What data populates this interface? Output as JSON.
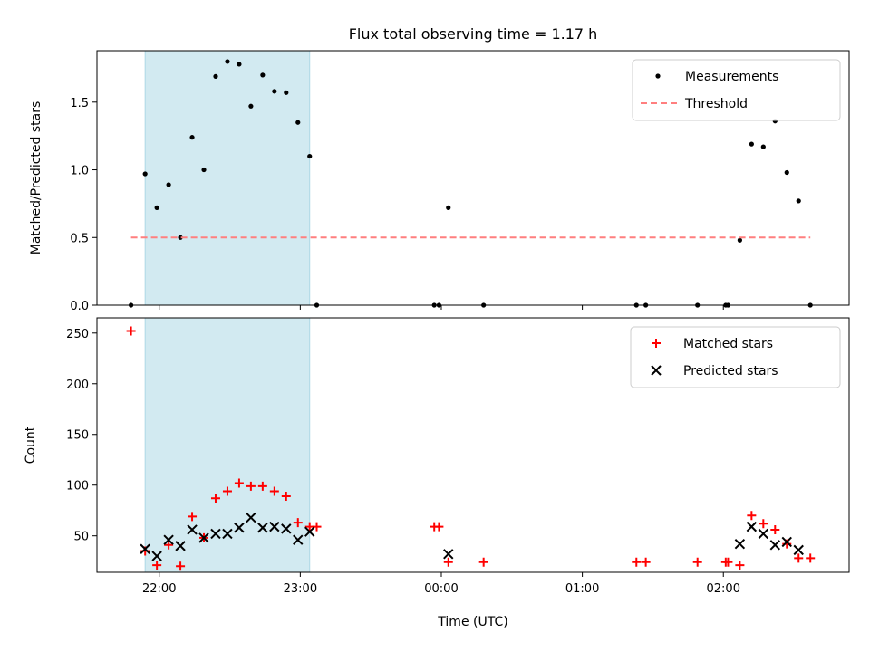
{
  "chart_data": {
    "type": "scatter",
    "title": "Flux total observing time = 1.17 h",
    "xlabel": "Time (UTC)",
    "x_ticks": [
      "22:00",
      "23:00",
      "00:00",
      "01:00",
      "02:00"
    ],
    "highlight_span": {
      "start": "21:54",
      "end": "23:04",
      "color": "#add8e6"
    },
    "panels": [
      {
        "name": "ratio",
        "ylabel": "Matched/Predicted stars",
        "ylim": [
          0,
          1.88
        ],
        "y_ticks": [
          "0.0",
          "0.5",
          "1.0",
          "1.5"
        ],
        "y_tick_values": [
          0,
          0.5,
          1.0,
          1.5
        ],
        "legend_position": "top-right",
        "series": [
          {
            "name": "Measurements",
            "marker": "dot",
            "color": "#000000",
            "points": [
              [
                "21:48",
                0.0
              ],
              [
                "21:54",
                0.97
              ],
              [
                "21:59",
                0.72
              ],
              [
                "22:04",
                0.89
              ],
              [
                "22:09",
                0.5
              ],
              [
                "22:14",
                1.24
              ],
              [
                "22:19",
                1.0
              ],
              [
                "22:24",
                1.69
              ],
              [
                "22:29",
                1.8
              ],
              [
                "22:34",
                1.78
              ],
              [
                "22:39",
                1.47
              ],
              [
                "22:44",
                1.7
              ],
              [
                "22:49",
                1.58
              ],
              [
                "22:54",
                1.57
              ],
              [
                "22:59",
                1.35
              ],
              [
                "23:04",
                1.1
              ],
              [
                "23:07",
                0.0
              ],
              [
                "23:57",
                0.0
              ],
              [
                "23:59",
                0.0
              ],
              [
                "00:03",
                0.72
              ],
              [
                "00:18",
                0.0
              ],
              [
                "01:23",
                0.0
              ],
              [
                "01:27",
                0.0
              ],
              [
                "01:49",
                0.0
              ],
              [
                "02:01",
                0.0
              ],
              [
                "02:02",
                0.0
              ],
              [
                "02:07",
                0.48
              ],
              [
                "02:12",
                1.19
              ],
              [
                "02:17",
                1.17
              ],
              [
                "02:22",
                1.36
              ],
              [
                "02:27",
                0.98
              ],
              [
                "02:32",
                0.77
              ],
              [
                "02:37",
                0.0
              ]
            ]
          },
          {
            "name": "Threshold",
            "marker": "dashed-line",
            "color": "#ff7f7f",
            "points": [
              [
                "21:48",
                0.5
              ],
              [
                "02:37",
                0.5
              ]
            ]
          }
        ]
      },
      {
        "name": "count",
        "ylabel": "Count",
        "ylim": [
          14,
          265
        ],
        "y_ticks": [
          "50",
          "100",
          "150",
          "200",
          "250"
        ],
        "y_tick_values": [
          50,
          100,
          150,
          200,
          250
        ],
        "legend_position": "top-right",
        "series": [
          {
            "name": "Matched stars",
            "marker": "plus",
            "color": "#ff0000",
            "points": [
              [
                "21:48",
                252
              ],
              [
                "21:54",
                35
              ],
              [
                "21:59",
                21
              ],
              [
                "22:04",
                41
              ],
              [
                "22:09",
                20
              ],
              [
                "22:14",
                69
              ],
              [
                "22:19",
                48
              ],
              [
                "22:24",
                87
              ],
              [
                "22:29",
                94
              ],
              [
                "22:34",
                102
              ],
              [
                "22:39",
                99
              ],
              [
                "22:44",
                99
              ],
              [
                "22:49",
                94
              ],
              [
                "22:54",
                89
              ],
              [
                "22:59",
                63
              ],
              [
                "23:04",
                59
              ],
              [
                "23:07",
                59
              ],
              [
                "23:57",
                59
              ],
              [
                "23:59",
                59
              ],
              [
                "00:03",
                24
              ],
              [
                "00:18",
                24
              ],
              [
                "01:23",
                24
              ],
              [
                "01:27",
                24
              ],
              [
                "01:49",
                24
              ],
              [
                "02:01",
                24
              ],
              [
                "02:02",
                24
              ],
              [
                "02:07",
                21
              ],
              [
                "02:12",
                70
              ],
              [
                "02:17",
                62
              ],
              [
                "02:22",
                56
              ],
              [
                "02:27",
                42
              ],
              [
                "02:32",
                28
              ],
              [
                "02:37",
                28
              ]
            ]
          },
          {
            "name": "Predicted stars",
            "marker": "x",
            "color": "#000000",
            "points": [
              [
                "21:54",
                37
              ],
              [
                "21:59",
                30
              ],
              [
                "22:04",
                46
              ],
              [
                "22:09",
                40
              ],
              [
                "22:14",
                56
              ],
              [
                "22:19",
                48
              ],
              [
                "22:24",
                52
              ],
              [
                "22:29",
                52
              ],
              [
                "22:34",
                58
              ],
              [
                "22:39",
                68
              ],
              [
                "22:44",
                58
              ],
              [
                "22:49",
                59
              ],
              [
                "22:54",
                57
              ],
              [
                "22:59",
                46
              ],
              [
                "23:04",
                54
              ],
              [
                "00:03",
                32
              ],
              [
                "02:07",
                42
              ],
              [
                "02:12",
                59
              ],
              [
                "02:17",
                52
              ],
              [
                "02:22",
                41
              ],
              [
                "02:27",
                44
              ],
              [
                "02:32",
                36
              ]
            ]
          }
        ]
      }
    ]
  }
}
